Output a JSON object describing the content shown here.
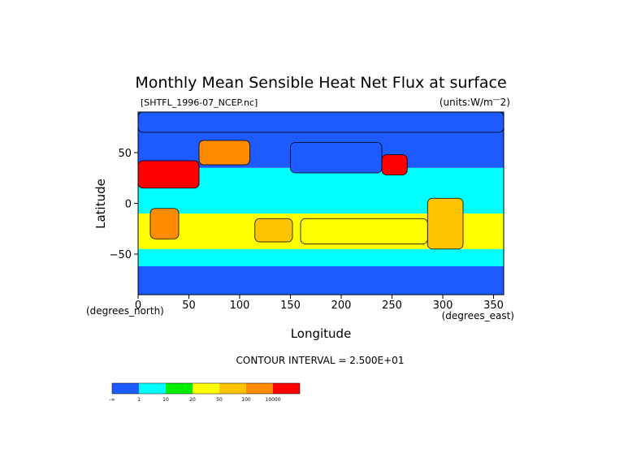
{
  "chart_data": {
    "type": "heatmap",
    "title": "Monthly Mean Sensible Heat Net Flux at surface",
    "source_label": "[SHTFL_1996-07_NCEP.nc]",
    "units_label": "(units:W/m^2)",
    "units_label_prefix": "(units:W/m",
    "units_label_exp": "2)",
    "xlabel": "Longitude",
    "ylabel": "Latitude",
    "x_unit_label": "(degrees_east)",
    "y_unit_label": "(degrees_north)",
    "xlim": [
      0,
      360
    ],
    "ylim": [
      -90,
      90
    ],
    "x_ticks": [
      "0",
      "50",
      "100",
      "150",
      "200",
      "250",
      "300",
      "350"
    ],
    "y_ticks": [
      "50",
      "0",
      "−50"
    ],
    "x_tick_values": [
      0,
      50,
      100,
      150,
      200,
      250,
      300,
      350
    ],
    "y_tick_values": [
      50,
      0,
      -50
    ],
    "contour_interval_label": "CONTOUR INTERVAL = 2.500E+01",
    "legend": {
      "labels": [
        "-∞",
        "1",
        "10",
        "20",
        "50",
        "100",
        "10000"
      ],
      "colors": [
        "#1e5bff",
        "#00ffff",
        "#00ee00",
        "#ffff00",
        "#ffc400",
        "#ff8c00",
        "#ff0000"
      ]
    },
    "field_note_bands": [
      {
        "lat_min": -90,
        "lat_max": -62,
        "class": 0
      },
      {
        "lat_min": -62,
        "lat_max": -45,
        "class": 1
      },
      {
        "lat_min": -45,
        "lat_max": -10,
        "class": 3
      },
      {
        "lat_min": -10,
        "lat_max": 35,
        "class": 1
      },
      {
        "lat_min": 35,
        "lat_max": 62,
        "class": 0
      },
      {
        "lat_min": 62,
        "lat_max": 90,
        "class": 0
      }
    ],
    "regions": [
      {
        "name": "north-africa-arabia",
        "lon": [
          0,
          60
        ],
        "lat": [
          15,
          42
        ],
        "class": 6
      },
      {
        "name": "eurasia-interior",
        "lon": [
          60,
          110
        ],
        "lat": [
          38,
          62
        ],
        "class": 5
      },
      {
        "name": "north-america-west",
        "lon": [
          240,
          265
        ],
        "lat": [
          28,
          48
        ],
        "class": 6
      },
      {
        "name": "southern-africa",
        "lon": [
          12,
          40
        ],
        "lat": [
          -35,
          -5
        ],
        "class": 5
      },
      {
        "name": "australia",
        "lon": [
          115,
          152
        ],
        "lat": [
          -38,
          -15
        ],
        "class": 4
      },
      {
        "name": "south-america",
        "lon": [
          285,
          320
        ],
        "lat": [
          -45,
          5
        ],
        "class": 4
      },
      {
        "name": "south-pacific-subtropic",
        "lon": [
          160,
          285
        ],
        "lat": [
          -40,
          -15
        ],
        "class": 3
      },
      {
        "name": "north-pacific",
        "lon": [
          150,
          240
        ],
        "lat": [
          30,
          60
        ],
        "class": 0
      },
      {
        "name": "arctic",
        "lon": [
          0,
          360
        ],
        "lat": [
          70,
          90
        ],
        "class": 0
      }
    ]
  }
}
